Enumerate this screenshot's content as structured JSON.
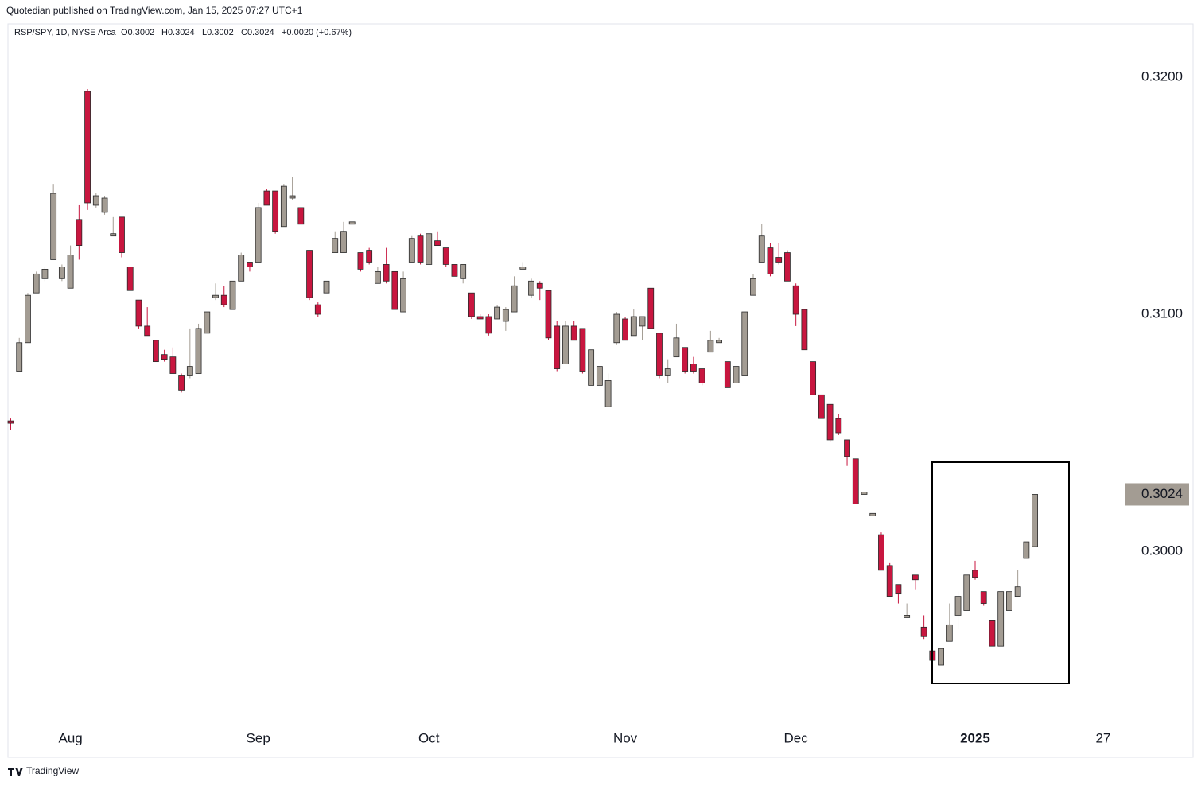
{
  "published": "Quotedian published on TradingView.com, Jan 15, 2025 07:27 UTC+1",
  "footer": "TradingView",
  "chart_data": {
    "type": "candlestick",
    "title": "RSP/SPY, 1D, NYSE Arca",
    "ohlc_legend": [
      "O0.3002",
      "H0.3024",
      "L0.3002",
      "C0.3024",
      "+0.0020 (+0.67%)"
    ],
    "up_color": "#a39c93",
    "down_color": "#c8163f",
    "border_color": "#2a2a2a",
    "grid": false,
    "ylim": [
      0.29265,
      0.32225
    ],
    "yticks": [
      {
        "value": 0.32,
        "label": "0.3200"
      },
      {
        "value": 0.31,
        "label": "0.3100"
      },
      {
        "value": 0.3,
        "label": "0.3000"
      }
    ],
    "last_price": 0.3024,
    "categories": [
      null,
      null,
      null,
      null,
      null,
      null,
      null,
      "Aug",
      null,
      null,
      null,
      null,
      null,
      null,
      null,
      null,
      null,
      null,
      null,
      null,
      null,
      null,
      null,
      null,
      null,
      null,
      null,
      null,
      null,
      "Sep",
      null,
      null,
      null,
      null,
      null,
      null,
      null,
      null,
      null,
      null,
      null,
      null,
      null,
      null,
      null,
      null,
      null,
      null,
      null,
      "Oct",
      null,
      null,
      null,
      null,
      null,
      null,
      null,
      null,
      null,
      null,
      null,
      null,
      null,
      null,
      null,
      null,
      null,
      null,
      null,
      null,
      null,
      null,
      "Nov",
      null,
      null,
      null,
      null,
      null,
      null,
      null,
      null,
      null,
      null,
      null,
      null,
      null,
      null,
      null,
      null,
      null,
      null,
      null,
      "Dec",
      null,
      null,
      null,
      null,
      null,
      null,
      null,
      null,
      null,
      null,
      null,
      null,
      null,
      null,
      null,
      null,
      null,
      null,
      null,
      null,
      "2025",
      null,
      null,
      null,
      null,
      null,
      null,
      null,
      null,
      null,
      null,
      null,
      null,
      null,
      null,
      "27",
      null,
      null,
      null,
      null,
      null,
      null,
      null,
      null,
      null,
      null
    ],
    "open": [
      0.3055,
      0.3076,
      0.3088,
      0.3109,
      0.3115,
      0.3123,
      0.3115,
      0.3111,
      0.314,
      0.3194,
      0.3146,
      0.3143,
      0.3133,
      0.3141,
      0.312,
      0.3106,
      0.3095,
      0.3089,
      0.3083,
      0.3082,
      0.3074,
      0.3074,
      0.3075,
      0.3092,
      0.3107,
      0.3108,
      0.3102,
      0.3114,
      0.3122,
      0.3122,
      0.3152,
      0.3152,
      0.3137,
      0.3149,
      0.3145,
      0.3127,
      0.3104,
      0.3109,
      0.3126,
      0.3126,
      0.3138,
      0.3126,
      0.3127,
      0.3113,
      0.3121,
      0.3118,
      0.3101,
      0.3122,
      0.3133,
      0.3121,
      0.3131,
      0.3128,
      0.3121,
      0.3115,
      0.3109,
      0.3099,
      0.3099,
      0.3098,
      0.3097,
      0.3101,
      0.3119,
      0.3108,
      0.3113,
      0.311,
      0.3095,
      0.3079,
      0.3095,
      0.3094,
      0.307,
      0.307,
      0.3061,
      0.3088,
      0.3098,
      0.3091,
      0.3095,
      0.3111,
      0.3092,
      0.3074,
      0.3082,
      0.3086,
      0.3079,
      0.3077,
      0.3084,
      0.3088,
      0.308,
      0.3071,
      0.3074,
      0.3108,
      0.3122,
      0.3128,
      0.3124,
      0.3126,
      0.3112,
      0.3102,
      0.308,
      0.3066,
      0.3062,
      0.3056,
      0.3047,
      0.3039,
      0.3024,
      0.3015,
      0.3007,
      0.2994,
      0.2986,
      0.2972,
      0.299,
      0.2968,
      0.2958,
      0.2952,
      0.2962,
      0.2973,
      0.2975,
      0.2992,
      0.2983,
      0.2971,
      0.296,
      0.2975,
      0.2981,
      0.2997,
      0.3002,
      null,
      null,
      null,
      null,
      null,
      null,
      null,
      null,
      null,
      null,
      null,
      null,
      null,
      null,
      null,
      null,
      null,
      null
    ],
    "high": [
      0.3056,
      0.309,
      0.3109,
      0.3118,
      0.312,
      0.3155,
      0.3121,
      0.3129,
      0.3146,
      0.3195,
      0.3151,
      0.315,
      0.3141,
      0.3141,
      0.312,
      0.3106,
      0.3103,
      0.3089,
      0.3085,
      0.3086,
      0.3075,
      0.3094,
      0.3096,
      0.3101,
      0.3113,
      0.3112,
      0.3114,
      0.3126,
      0.3122,
      0.3147,
      0.3153,
      0.3152,
      0.3155,
      0.3158,
      0.3145,
      0.3127,
      0.3105,
      0.3114,
      0.3135,
      0.3139,
      0.3139,
      0.3126,
      0.3128,
      0.312,
      0.3128,
      0.3118,
      0.3118,
      0.3133,
      0.3134,
      0.3134,
      0.3135,
      0.3128,
      0.3121,
      0.3121,
      0.3109,
      0.31,
      0.31,
      0.3104,
      0.3103,
      0.3116,
      0.3122,
      0.3115,
      0.3114,
      0.311,
      0.3097,
      0.3097,
      0.3097,
      0.3094,
      0.3085,
      0.3078,
      0.3075,
      0.3101,
      0.3099,
      0.3102,
      0.3099,
      0.3111,
      0.3092,
      0.3081,
      0.3096,
      0.3086,
      0.3082,
      0.3077,
      0.3093,
      0.309,
      0.308,
      0.3078,
      0.3101,
      0.3117,
      0.3138,
      0.313,
      0.313,
      0.3127,
      0.3113,
      0.3102,
      0.308,
      0.3066,
      0.3062,
      0.3058,
      0.3047,
      0.3039,
      0.3025,
      0.3016,
      0.3008,
      0.2995,
      0.2986,
      0.2978,
      0.299,
      0.2973,
      0.2958,
      0.2959,
      0.2978,
      0.2983,
      0.299,
      0.2996,
      0.2983,
      0.2971,
      0.2983,
      0.2983,
      0.2992,
      0.3004,
      0.3024,
      null,
      null,
      null,
      null,
      null,
      null,
      null,
      null,
      null,
      null,
      null,
      null,
      null,
      null,
      null,
      null,
      null,
      null
    ],
    "low": [
      0.3051,
      0.3076,
      0.3088,
      0.3109,
      0.3114,
      0.3123,
      0.3114,
      0.3111,
      0.3123,
      0.3144,
      0.3145,
      0.3142,
      0.3133,
      0.3124,
      0.311,
      0.3094,
      0.3091,
      0.308,
      0.308,
      0.3075,
      0.3067,
      0.3073,
      0.3075,
      0.3092,
      0.3106,
      0.3103,
      0.3102,
      0.3114,
      0.3118,
      0.3122,
      0.3146,
      0.3134,
      0.3137,
      0.3148,
      0.3138,
      0.3106,
      0.3099,
      0.3109,
      0.3126,
      0.3126,
      0.3138,
      0.3118,
      0.3121,
      0.3113,
      0.3113,
      0.3102,
      0.3101,
      0.3122,
      0.3121,
      0.3121,
      0.3129,
      0.312,
      0.3116,
      0.3113,
      0.3098,
      0.3098,
      0.3091,
      0.3098,
      0.3093,
      0.3101,
      0.3119,
      0.3107,
      0.3106,
      0.3089,
      0.3076,
      0.3079,
      0.3089,
      0.3075,
      0.307,
      0.307,
      0.3061,
      0.3087,
      0.3089,
      0.3091,
      0.3089,
      0.3094,
      0.3073,
      0.3071,
      0.3082,
      0.3075,
      0.3075,
      0.307,
      0.3084,
      0.3088,
      0.3069,
      0.3071,
      0.3074,
      0.3108,
      0.3122,
      0.3116,
      0.3121,
      0.3114,
      0.3095,
      0.3085,
      0.3066,
      0.3056,
      0.3046,
      0.3049,
      0.3036,
      0.302,
      0.3024,
      0.3015,
      0.2992,
      0.2981,
      0.2978,
      0.2972,
      0.2984,
      0.2963,
      0.2953,
      0.2952,
      0.2962,
      0.2967,
      0.2975,
      0.2988,
      0.2977,
      0.296,
      0.296,
      0.2975,
      0.2981,
      0.2997,
      0.3002,
      null,
      null,
      null,
      null,
      null,
      null,
      null,
      null,
      null,
      null,
      null,
      null,
      null,
      null,
      null,
      null,
      null,
      null
    ],
    "close": [
      0.3054,
      0.3088,
      0.3108,
      0.3117,
      0.3119,
      0.3151,
      0.312,
      0.3125,
      0.3129,
      0.3147,
      0.315,
      0.3149,
      0.3134,
      0.3126,
      0.311,
      0.3095,
      0.3091,
      0.308,
      0.3081,
      0.3075,
      0.3068,
      0.3078,
      0.3094,
      0.3101,
      0.3108,
      0.3104,
      0.3114,
      0.3125,
      0.312,
      0.3145,
      0.3146,
      0.3135,
      0.3154,
      0.315,
      0.3138,
      0.3107,
      0.31,
      0.3114,
      0.3132,
      0.3135,
      0.3139,
      0.3119,
      0.3122,
      0.3118,
      0.3114,
      0.3102,
      0.3115,
      0.3132,
      0.3122,
      0.3134,
      0.3129,
      0.3121,
      0.3116,
      0.3121,
      0.3099,
      0.3098,
      0.3092,
      0.3103,
      0.3102,
      0.3112,
      0.312,
      0.3114,
      0.3111,
      0.309,
      0.3077,
      0.3095,
      0.3089,
      0.3076,
      0.3085,
      0.3078,
      0.3072,
      0.31,
      0.3089,
      0.3099,
      0.3099,
      0.3094,
      0.3074,
      0.3077,
      0.309,
      0.3076,
      0.3076,
      0.3071,
      0.3089,
      0.3089,
      0.3069,
      0.3078,
      0.3101,
      0.3115,
      0.3133,
      0.3117,
      0.3122,
      0.3114,
      0.31,
      0.3085,
      0.3066,
      0.3056,
      0.3047,
      0.305,
      0.304,
      0.302,
      0.3025,
      0.3016,
      0.2992,
      0.2981,
      0.2982,
      0.2973,
      0.2988,
      0.2964,
      0.2954,
      0.2959,
      0.2969,
      0.2981,
      0.299,
      0.2989,
      0.2978,
      0.296,
      0.2983,
      0.2983,
      0.2985,
      0.3004,
      0.3024,
      null,
      null,
      null,
      null,
      null,
      null,
      null,
      null,
      null,
      null,
      null,
      null,
      null,
      null,
      null,
      null,
      null,
      null
    ]
  }
}
